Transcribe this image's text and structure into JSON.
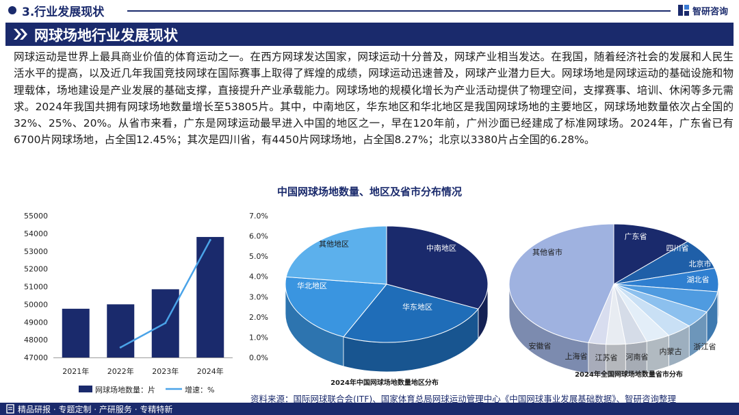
{
  "header": {
    "section_title": "3.行业发展现状",
    "logo_text": "智研咨询",
    "banner_title": "网球场地行业发展现状"
  },
  "paragraph": "网球运动是世界上最具商业价值的体育运动之一。在西方网球发达国家，网球运动十分普及，网球产业相当发达。在我国，随着经济社会的发展和人民生活水平的提高，以及近几年我国竞技网球在国际赛事上取得了辉煌的成绩，网球运动迅速普及，网球产业潜力巨大。网球场地是网球运动的基础设施和物理载体，场地建设是产业发展的基础支撑，直接提升产业承载能力。网球场地的规模化增长为产业活动提供了物理空间，支撑赛事、培训、休闲等多元需求。2024年我国共拥有网球场地数量增长至53805片。其中，中南地区，华东地区和华北地区是我国网球场地的主要地区，网球场地数量依次占全国的32%、25%、20%。从省市来看，广东是网球运动最早进入中国的地区之一，早在120年前，广州沙面已经建成了标准网球场。2024年，广东省已有6700片网球场地，占全国12.45%；其次是四川省，有4450片网球场地，占全国8.27%；北京以3380片占全国的6.28%。",
  "figure_title": "中国网球场地数量、地区及省市分布情况",
  "colors": {
    "navy": "#1a2a6c",
    "line": "#4aa3e8"
  },
  "chart_data": [
    {
      "type": "bar",
      "categories": [
        "2021年",
        "2022年",
        "2023年",
        "2024年"
      ],
      "series": [
        {
          "name": "网球场地数量：片",
          "values": [
            49750,
            50000,
            50850,
            53800
          ],
          "color": "#1a2a6c"
        },
        {
          "name": "增速：%",
          "type": "line",
          "axis": "right",
          "values": [
            null,
            0.5,
            1.7,
            5.8
          ],
          "color": "#4aa3e8"
        }
      ],
      "ylim": [
        47000,
        55000
      ],
      "yticks": [
        "47000",
        "48000",
        "49000",
        "50000",
        "51000",
        "52000",
        "53000",
        "54000",
        "55000"
      ],
      "y2lim": [
        0,
        7
      ],
      "y2ticks": [
        "0.0%",
        "1.0%",
        "2.0%",
        "3.0%",
        "4.0%",
        "5.0%",
        "6.0%",
        "7.0%"
      ],
      "legend_position": "bottom",
      "grid": false
    },
    {
      "type": "pie",
      "title": "2024年中国网球场地数量地区分布",
      "labels": [
        "中南地区",
        "华东地区",
        "华北地区",
        "其他地区"
      ],
      "values": [
        32,
        25,
        20,
        23
      ],
      "colors": [
        "#1a2a6c",
        "#1f6db8",
        "#3a95e0",
        "#5cb0ec"
      ]
    },
    {
      "type": "pie",
      "title": "2024年全国网球场地数量省市分布",
      "labels": [
        "广东省",
        "四川省",
        "北京市",
        "湖北省",
        "浙江省",
        "内蒙古",
        "河南省",
        "江苏省",
        "上海省",
        "安徽省",
        "其他省市"
      ],
      "values": [
        12.45,
        8.27,
        6.28,
        5.6,
        4.6,
        4.0,
        3.7,
        3.3,
        3.0,
        2.7,
        46.1
      ],
      "colors": [
        "#1a2a6c",
        "#1f5fa8",
        "#2f7fd0",
        "#4f9be0",
        "#8cc0ee",
        "#c9e0f5",
        "#e3eef8",
        "#d5dce8",
        "#e8ecf2",
        "#d8ddef",
        "#9fb2e0"
      ]
    }
  ],
  "source_text": "资料来源：国际网球联合会(ITF)、国家体育总局网球运动管理中心《中国网球事业发展基础数据》、智研咨询整理",
  "footer_text": "精品研报 · 专题定制 · 产研服务 · 专精特新"
}
